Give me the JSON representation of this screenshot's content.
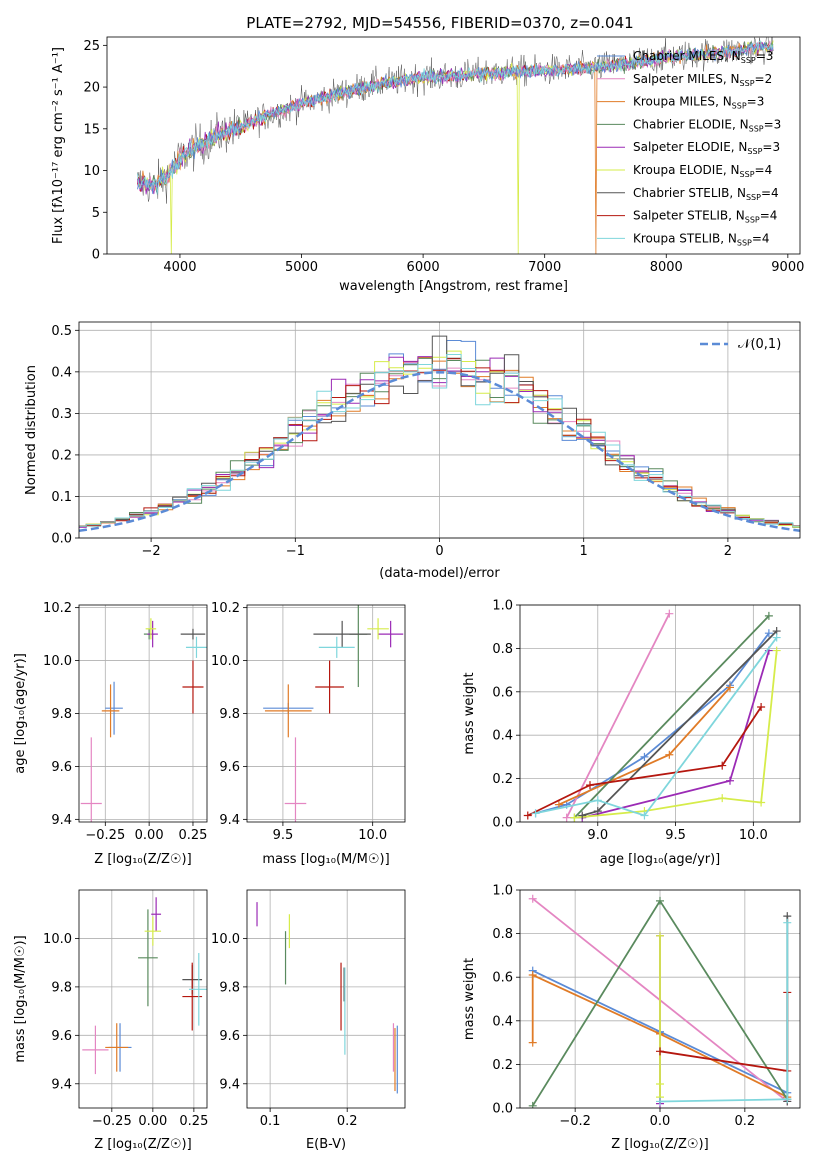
{
  "figure_title": "PLATE=2792, MJD=54556, FIBERID=0370, z=0.041",
  "models": [
    {
      "name": "Chabrier MILES",
      "nssp": "3",
      "color": "#5b8bd6"
    },
    {
      "name": "Salpeter MILES",
      "nssp": "2",
      "color": "#e486c2"
    },
    {
      "name": "Kroupa MILES",
      "nssp": "3",
      "color": "#e07b27"
    },
    {
      "name": "Chabrier ELODIE",
      "nssp": "3",
      "color": "#5a8a5e"
    },
    {
      "name": "Salpeter ELODIE",
      "nssp": "3",
      "color": "#9b2bb5"
    },
    {
      "name": "Kroupa ELODIE",
      "nssp": "4",
      "color": "#d6ec4a"
    },
    {
      "name": "Chabrier STELIB",
      "nssp": "4",
      "color": "#555555"
    },
    {
      "name": "Salpeter STELIB",
      "nssp": "4",
      "color": "#b5170f"
    },
    {
      "name": "Kroupa STELIB",
      "nssp": "4",
      "color": "#7fd6dc"
    }
  ],
  "chart_data": [
    {
      "id": "spectrum",
      "type": "line",
      "xlabel": "wavelength [Angstrom, rest frame]",
      "ylabel": "Flux [fλ10⁻¹⁷ erg cm⁻² s⁻¹ A⁻¹]",
      "xlim": [
        3400,
        9100
      ],
      "ylim": [
        0,
        26
      ],
      "xticks": [
        4000,
        5000,
        6000,
        7000,
        8000,
        9000
      ],
      "yticks": [
        0,
        5,
        10,
        15,
        20,
        25
      ],
      "grid": false,
      "legend": "right",
      "continuum": [
        [
          3650,
          8.5
        ],
        [
          3800,
          8.2
        ],
        [
          3900,
          9.5
        ],
        [
          4000,
          11.5
        ],
        [
          4100,
          12.5
        ],
        [
          4300,
          14.2
        ],
        [
          4500,
          15.2
        ],
        [
          4700,
          16.5
        ],
        [
          5000,
          18
        ],
        [
          5300,
          19.2
        ],
        [
          5600,
          20.3
        ],
        [
          6000,
          21.2
        ],
        [
          6300,
          21.3
        ],
        [
          6600,
          21.8
        ],
        [
          7000,
          22
        ],
        [
          7300,
          22.2
        ],
        [
          7600,
          22.6
        ],
        [
          8000,
          23.6
        ],
        [
          8400,
          24.1
        ],
        [
          8800,
          24.8
        ]
      ],
      "drops": [
        {
          "model": "Kroupa ELODIE",
          "x": 3930
        },
        {
          "model": "Kroupa ELODIE",
          "x": 6780
        },
        {
          "model": "Kroupa MILES",
          "x": 7420
        }
      ]
    },
    {
      "id": "residuals",
      "type": "bar",
      "xlabel": "(data-model)/error",
      "ylabel": "Normed distribution",
      "xlim": [
        -2.5,
        2.5
      ],
      "ylim": [
        0,
        0.52
      ],
      "xticks": [
        -2,
        -1,
        0,
        1,
        2
      ],
      "yticks": [
        0,
        0.1,
        0.2,
        0.3,
        0.4,
        0.5
      ],
      "grid": true,
      "legend": "top-right",
      "reference": {
        "name": "𝒩(0,1)",
        "mean": 0,
        "sigma": 1
      },
      "bin_width": 0.1
    },
    {
      "id": "age_vs_Z",
      "type": "scatter",
      "xlabel": "Z [log₁₀(Z/Z☉)]",
      "ylabel": "age  [log₁₀(age/yr)]",
      "xlim": [
        -0.4,
        0.33
      ],
      "ylim": [
        9.39,
        10.21
      ],
      "xticks": [
        -0.25,
        0,
        0.25
      ],
      "yticks": [
        9.4,
        9.6,
        9.8,
        10,
        10.2
      ],
      "grid": true,
      "points": [
        {
          "model": "Chabrier MILES",
          "x": -0.2,
          "xe": 0.05,
          "y": 9.82,
          "ye": 0.1
        },
        {
          "model": "Salpeter MILES",
          "x": -0.33,
          "xe": 0.06,
          "y": 9.46,
          "ye": 0.25
        },
        {
          "model": "Kroupa MILES",
          "x": -0.22,
          "xe": 0.05,
          "y": 9.81,
          "ye": 0.1
        },
        {
          "model": "Chabrier ELODIE",
          "x": 0,
          "xe": 0.03,
          "y": 10.1,
          "ye": 0.02
        },
        {
          "model": "Salpeter ELODIE",
          "x": 0.02,
          "xe": 0.03,
          "y": 10.1,
          "ye": 0.05
        },
        {
          "model": "Kroupa ELODIE",
          "x": 0.01,
          "xe": 0.03,
          "y": 10.12,
          "ye": 0.04
        },
        {
          "model": "Chabrier STELIB",
          "x": 0.25,
          "xe": 0.07,
          "y": 10.1,
          "ye": 0.02
        },
        {
          "model": "Salpeter STELIB",
          "x": 0.25,
          "xe": 0.06,
          "y": 9.9,
          "ye": 0.1
        },
        {
          "model": "Kroupa STELIB",
          "x": 0.27,
          "xe": 0.06,
          "y": 10.05,
          "ye": 0.04
        }
      ]
    },
    {
      "id": "age_vs_mass",
      "type": "scatter",
      "xlabel": "mass [log₁₀(M/M☉)]",
      "ylabel": "",
      "xlim": [
        9.3,
        10.18
      ],
      "ylim": [
        9.39,
        10.21
      ],
      "xticks": [
        9.5,
        10
      ],
      "yticks": [
        9.4,
        9.6,
        9.8,
        10,
        10.2
      ],
      "grid": true,
      "points": [
        {
          "model": "Chabrier MILES",
          "x": 9.53,
          "xe": 0.14,
          "y": 9.82,
          "ye": 0.02
        },
        {
          "model": "Salpeter MILES",
          "x": 9.57,
          "xe": 0.06,
          "y": 9.46,
          "ye": 0.25
        },
        {
          "model": "Kroupa MILES",
          "x": 9.53,
          "xe": 0.13,
          "y": 9.81,
          "ye": 0.1
        },
        {
          "model": "Chabrier ELODIE",
          "x": 9.92,
          "xe": 0.05,
          "y": 10.1,
          "ye": 0.2
        },
        {
          "model": "Salpeter ELODIE",
          "x": 10.1,
          "xe": 0.07,
          "y": 10.1,
          "ye": 0.05
        },
        {
          "model": "Kroupa ELODIE",
          "x": 10.03,
          "xe": 0.06,
          "y": 10.12,
          "ye": 0.04
        },
        {
          "model": "Chabrier STELIB",
          "x": 9.83,
          "xe": 0.16,
          "y": 10.1,
          "ye": 0.05
        },
        {
          "model": "Salpeter STELIB",
          "x": 9.76,
          "xe": 0.08,
          "y": 9.9,
          "ye": 0.1
        },
        {
          "model": "Kroupa STELIB",
          "x": 9.8,
          "xe": 0.1,
          "y": 10.05,
          "ye": 0.04
        }
      ]
    },
    {
      "id": "massweight_vs_age",
      "type": "line",
      "xlabel": "age  [log₁₀(age/yr)]",
      "ylabel": "mass weight",
      "xlim": [
        8.5,
        10.3
      ],
      "ylim": [
        0,
        1
      ],
      "xticks": [
        9,
        9.5,
        10
      ],
      "yticks": [
        0,
        0.2,
        0.4,
        0.6,
        0.8,
        1
      ],
      "grid": true,
      "series": [
        {
          "model": "Chabrier MILES",
          "x": [
            8.6,
            8.8,
            9.3,
            9.85,
            10.1
          ],
          "y": [
            0.04,
            0.08,
            0.3,
            0.63,
            0.87
          ]
        },
        {
          "model": "Salpeter MILES",
          "x": [
            8.8,
            9.46
          ],
          "y": [
            0.02,
            0.96
          ]
        },
        {
          "model": "Kroupa MILES",
          "x": [
            8.75,
            9.46,
            9.85
          ],
          "y": [
            0.08,
            0.31,
            0.62
          ]
        },
        {
          "model": "Chabrier ELODIE",
          "x": [
            8.85,
            10.1
          ],
          "y": [
            0.02,
            0.95
          ]
        },
        {
          "model": "Salpeter ELODIE",
          "x": [
            8.9,
            9.85,
            10.1
          ],
          "y": [
            0.02,
            0.19,
            0.79
          ]
        },
        {
          "model": "Kroupa ELODIE",
          "x": [
            8.85,
            9.3,
            9.8,
            10.05,
            10.15
          ],
          "y": [
            0.02,
            0.05,
            0.11,
            0.09,
            0.79
          ]
        },
        {
          "model": "Chabrier STELIB",
          "x": [
            8.9,
            9.0,
            10.15
          ],
          "y": [
            0.03,
            0.05,
            0.88
          ]
        },
        {
          "model": "Salpeter STELIB",
          "x": [
            8.55,
            8.95,
            9.8,
            10.05
          ],
          "y": [
            0.03,
            0.17,
            0.26,
            0.53
          ]
        },
        {
          "model": "Kroupa STELIB",
          "x": [
            8.6,
            9.0,
            9.3,
            10.15
          ],
          "y": [
            0.04,
            0.1,
            0.03,
            0.85
          ]
        }
      ]
    },
    {
      "id": "mass_vs_Z",
      "type": "scatter",
      "xlabel": "Z [log₁₀(Z/Z☉)]",
      "ylabel": "mass [log₁₀(M/M☉)]",
      "xlim": [
        -0.45,
        0.33
      ],
      "ylim": [
        9.3,
        10.2
      ],
      "xticks": [
        -0.25,
        0,
        0.25
      ],
      "yticks": [
        9.4,
        9.6,
        9.8,
        10
      ],
      "grid": true,
      "points": [
        {
          "model": "Chabrier MILES",
          "x": -0.2,
          "xe": 0.07,
          "y": 9.55,
          "ye": 0.1
        },
        {
          "model": "Salpeter MILES",
          "x": -0.35,
          "xe": 0.08,
          "y": 9.54,
          "ye": 0.1
        },
        {
          "model": "Kroupa MILES",
          "x": -0.22,
          "xe": 0.07,
          "y": 9.55,
          "ye": 0.1
        },
        {
          "model": "Chabrier ELODIE",
          "x": -0.03,
          "xe": 0.06,
          "y": 9.92,
          "ye": 0.2
        },
        {
          "model": "Salpeter ELODIE",
          "x": 0.02,
          "xe": 0.03,
          "y": 10.1,
          "ye": 0.07
        },
        {
          "model": "Kroupa ELODIE",
          "x": 0,
          "xe": 0.05,
          "y": 10.03,
          "ye": 0.06
        },
        {
          "model": "Chabrier STELIB",
          "x": 0.24,
          "xe": 0.06,
          "y": 9.83,
          "ye": 0.06
        },
        {
          "model": "Salpeter STELIB",
          "x": 0.24,
          "xe": 0.06,
          "y": 9.76,
          "ye": 0.14
        },
        {
          "model": "Kroupa STELIB",
          "x": 0.28,
          "xe": 0.06,
          "y": 9.79,
          "ye": 0.15
        }
      ]
    },
    {
      "id": "mass_vs_EBV",
      "type": "scatter",
      "xlabel": "E(B-V)",
      "ylabel": "",
      "xlim": [
        0.07,
        0.275
      ],
      "ylim": [
        9.3,
        10.2
      ],
      "xticks": [
        0.1,
        0.2
      ],
      "yticks": [
        9.4,
        9.6,
        9.8,
        10
      ],
      "grid": true,
      "points": [
        {
          "model": "Chabrier MILES",
          "x": 0.265,
          "xe": 0,
          "y": 9.5,
          "ye": 0.14
        },
        {
          "model": "Salpeter MILES",
          "x": 0.26,
          "xe": 0,
          "y": 9.55,
          "ye": 0.1
        },
        {
          "model": "Kroupa MILES",
          "x": 0.262,
          "xe": 0,
          "y": 9.5,
          "ye": 0.13
        },
        {
          "model": "Chabrier ELODIE",
          "x": 0.12,
          "xe": 0,
          "y": 9.92,
          "ye": 0.11
        },
        {
          "model": "Salpeter ELODIE",
          "x": 0.083,
          "xe": 0,
          "y": 10.1,
          "ye": 0.05
        },
        {
          "model": "Kroupa ELODIE",
          "x": 0.125,
          "xe": 0,
          "y": 10.03,
          "ye": 0.07
        },
        {
          "model": "Chabrier STELIB",
          "x": 0.196,
          "xe": 0,
          "y": 9.81,
          "ye": 0.07
        },
        {
          "model": "Salpeter STELIB",
          "x": 0.192,
          "xe": 0,
          "y": 9.76,
          "ye": 0.14
        },
        {
          "model": "Kroupa STELIB",
          "x": 0.197,
          "xe": 0,
          "y": 9.7,
          "ye": 0.18
        }
      ]
    },
    {
      "id": "massweight_vs_Z",
      "type": "line",
      "xlabel": "Z [log₁₀(Z/Z☉)]",
      "ylabel": "mass weight",
      "xlim": [
        -0.33,
        0.33
      ],
      "ylim": [
        0,
        1
      ],
      "xticks": [
        -0.2,
        0,
        0.2
      ],
      "yticks": [
        0,
        0.2,
        0.4,
        0.6,
        0.8,
        1
      ],
      "grid": true,
      "series": [
        {
          "model": "Chabrier MILES",
          "x": [
            -0.3,
            0,
            0.3
          ],
          "y": [
            0.63,
            0.35,
            0.07
          ]
        },
        {
          "model": "Salpeter MILES",
          "x": [
            -0.3,
            0.3
          ],
          "y": [
            0.96,
            0.03
          ]
        },
        {
          "model": "Kroupa MILES",
          "x": [
            -0.3,
            -0.3,
            0,
            0.3
          ],
          "y": [
            0.3,
            0.61,
            0.34,
            0.05
          ]
        },
        {
          "model": "Chabrier ELODIE",
          "x": [
            -0.3,
            0,
            0.3
          ],
          "y": [
            0.01,
            0.95,
            0.04
          ]
        },
        {
          "model": "Salpeter ELODIE",
          "x": [
            0,
            0
          ],
          "y": [
            0.02,
            0.79
          ]
        },
        {
          "model": "Kroupa ELODIE",
          "x": [
            0,
            0,
            0
          ],
          "y": [
            0.05,
            0.11,
            0.79
          ]
        },
        {
          "model": "Chabrier STELIB",
          "x": [
            0.3,
            0.3
          ],
          "y": [
            0.03,
            0.88
          ]
        },
        {
          "model": "Salpeter STELIB",
          "x": [
            0,
            0.3,
            0.3
          ],
          "y": [
            0.26,
            0.17,
            0.53
          ]
        },
        {
          "model": "Kroupa STELIB",
          "x": [
            0,
            0.3,
            0.3
          ],
          "y": [
            0.03,
            0.04,
            0.85
          ]
        }
      ]
    }
  ]
}
